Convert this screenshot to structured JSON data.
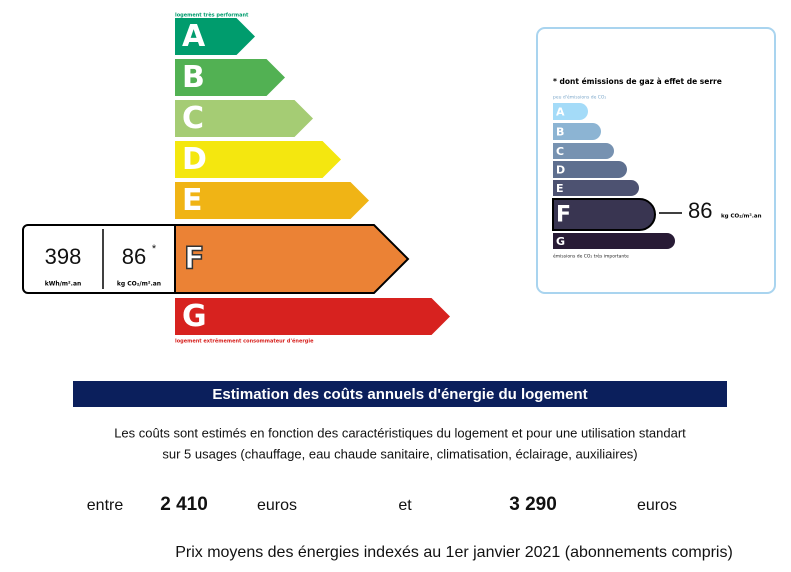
{
  "energy_label": {
    "top_note": "logement très performant",
    "bottom_note": "logement extrêmement consommateur d'énergie",
    "classes": [
      "A",
      "B",
      "C",
      "D",
      "E",
      "F",
      "G"
    ],
    "colors": [
      "#009c6d",
      "#52b153",
      "#a5cc74",
      "#f4e70f",
      "#f0b415",
      "#eb8235",
      "#d7221f"
    ],
    "current_class": "F",
    "energy_value": "398",
    "energy_unit": "kWh/m².an",
    "ghg_value": "86",
    "ghg_star": "*",
    "ghg_unit": "kg CO₂/m².an"
  },
  "ghg_label": {
    "title": "* dont émissions de gaz à effet de serre",
    "top_note": "peu d'émissions de CO₂",
    "bottom_note": "émissions de CO₂ très importante",
    "classes": [
      "A",
      "B",
      "C",
      "D",
      "E",
      "F",
      "G"
    ],
    "colors": [
      "#a4dbf8",
      "#8cb4d3",
      "#7792b1",
      "#5e6f8f",
      "#4d5271",
      "#393551",
      "#281b35"
    ],
    "value": "86",
    "unit": "kg CO₂/m².an"
  },
  "costs": {
    "title": "Estimation des coûts annuels d'énergie du logement",
    "description_lines": [
      "Les coûts sont estimés en fonction des caractéristiques du logement et pour une utilisation standart",
      "sur 5 usages (chauffage, eau chaude sanitaire, climatisation, éclairage, auxiliaires)"
    ],
    "from_word": "entre",
    "min_cost": "2 410",
    "min_unit": "euros",
    "and_word": "et",
    "max_cost": "3 290",
    "max_unit": "euros",
    "footnote": "Prix moyens des énergies indexés au 1er janvier 2021 (abonnements compris)"
  }
}
